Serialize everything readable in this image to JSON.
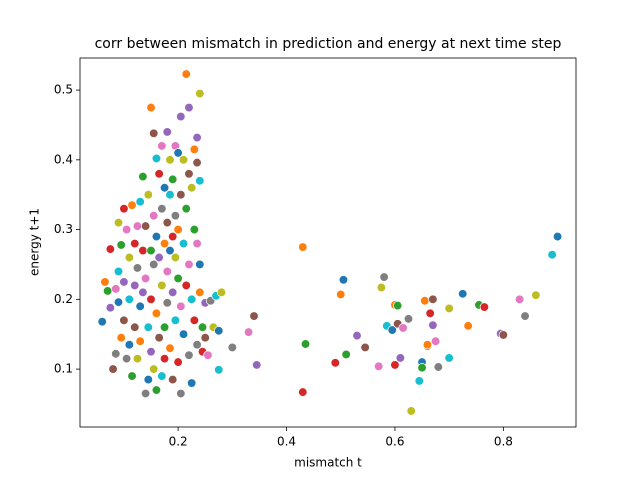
{
  "chart_data": {
    "type": "scatter",
    "title": "corr between mismatch in prediction and energy at next time step",
    "x_label": "mismatch t",
    "y_label": "energy t+1",
    "xlim": [
      0.019,
      0.934
    ],
    "ylim": [
      0.017,
      0.546
    ],
    "xticks": [
      0.2,
      0.4,
      0.6,
      0.8
    ],
    "yticks": [
      0.1,
      0.2,
      0.3,
      0.4,
      0.5
    ],
    "grid": false,
    "palette": [
      "#1f77b4",
      "#ff7f0e",
      "#2ca02c",
      "#d62728",
      "#9467bd",
      "#8c564b",
      "#e377c2",
      "#7f7f7f",
      "#bcbd22",
      "#17becf"
    ],
    "series": [
      {
        "x": [
          0.06,
          0.065,
          0.07,
          0.075,
          0.075,
          0.08,
          0.085,
          0.085,
          0.09,
          0.09,
          0.09,
          0.095,
          0.095,
          0.1,
          0.1,
          0.1,
          0.105,
          0.105,
          0.11,
          0.11,
          0.11,
          0.115,
          0.115,
          0.12,
          0.12,
          0.12,
          0.125,
          0.125,
          0.125,
          0.13,
          0.13,
          0.13,
          0.135,
          0.135,
          0.135,
          0.14,
          0.14,
          0.14,
          0.145,
          0.145,
          0.145,
          0.15,
          0.15,
          0.15,
          0.15,
          0.155,
          0.155,
          0.155,
          0.155,
          0.16,
          0.16,
          0.16,
          0.16,
          0.165,
          0.165,
          0.165,
          0.17,
          0.17,
          0.17,
          0.17,
          0.175,
          0.175,
          0.175,
          0.175,
          0.18,
          0.18,
          0.18,
          0.18,
          0.185,
          0.185,
          0.185,
          0.185,
          0.19,
          0.19,
          0.19,
          0.19,
          0.195,
          0.195,
          0.195,
          0.195,
          0.2,
          0.2,
          0.2,
          0.2,
          0.205,
          0.205,
          0.205,
          0.205,
          0.21,
          0.21,
          0.21,
          0.215,
          0.215,
          0.215,
          0.22,
          0.22,
          0.22,
          0.22,
          0.225,
          0.225,
          0.225,
          0.23,
          0.23,
          0.23,
          0.235,
          0.235,
          0.235,
          0.235,
          0.24,
          0.24,
          0.24,
          0.24,
          0.245,
          0.245,
          0.25,
          0.25,
          0.255,
          0.26,
          0.265,
          0.27,
          0.275,
          0.43,
          0.435,
          0.43,
          0.345,
          0.34,
          0.33,
          0.3,
          0.28,
          0.275,
          0.505,
          0.5,
          0.51,
          0.49,
          0.53,
          0.545,
          0.57,
          0.58,
          0.575,
          0.585,
          0.595,
          0.6,
          0.605,
          0.6,
          0.61,
          0.605,
          0.615,
          0.625,
          0.63,
          0.645,
          0.65,
          0.655,
          0.66,
          0.665,
          0.67,
          0.67,
          0.675,
          0.68,
          0.7,
          0.7,
          0.725,
          0.735,
          0.755,
          0.765,
          0.795,
          0.8,
          0.83,
          0.84,
          0.86,
          0.89,
          0.9,
          0.66,
          0.65
        ],
        "values": [
          0.168,
          0.225,
          0.212,
          0.272,
          0.188,
          0.1,
          0.215,
          0.122,
          0.31,
          0.24,
          0.196,
          0.145,
          0.278,
          0.33,
          0.225,
          0.17,
          0.3,
          0.115,
          0.26,
          0.2,
          0.135,
          0.335,
          0.09,
          0.28,
          0.22,
          0.16,
          0.305,
          0.245,
          0.115,
          0.34,
          0.19,
          0.14,
          0.376,
          0.27,
          0.21,
          0.305,
          0.23,
          0.065,
          0.35,
          0.16,
          0.085,
          0.475,
          0.27,
          0.2,
          0.125,
          0.438,
          0.32,
          0.25,
          0.1,
          0.402,
          0.29,
          0.18,
          0.07,
          0.38,
          0.26,
          0.145,
          0.42,
          0.33,
          0.22,
          0.09,
          0.36,
          0.28,
          0.16,
          0.115,
          0.44,
          0.31,
          0.24,
          0.195,
          0.4,
          0.35,
          0.27,
          0.13,
          0.372,
          0.29,
          0.21,
          0.085,
          0.42,
          0.32,
          0.26,
          0.17,
          0.41,
          0.3,
          0.23,
          0.11,
          0.462,
          0.35,
          0.19,
          0.065,
          0.4,
          0.28,
          0.15,
          0.523,
          0.33,
          0.22,
          0.475,
          0.38,
          0.25,
          0.12,
          0.36,
          0.2,
          0.08,
          0.415,
          0.3,
          0.17,
          0.432,
          0.396,
          0.28,
          0.135,
          0.495,
          0.37,
          0.25,
          0.21,
          0.16,
          0.125,
          0.195,
          0.145,
          0.12,
          0.198,
          0.16,
          0.205,
          0.155,
          0.275,
          0.136,
          0.067,
          0.106,
          0.176,
          0.153,
          0.131,
          0.21,
          0.099,
          0.228,
          0.207,
          0.121,
          0.109,
          0.148,
          0.131,
          0.104,
          0.232,
          0.217,
          0.162,
          0.156,
          0.192,
          0.191,
          0.106,
          0.116,
          0.165,
          0.159,
          0.172,
          0.04,
          0.083,
          0.11,
          0.198,
          0.133,
          0.18,
          0.163,
          0.2,
          0.14,
          0.103,
          0.187,
          0.116,
          0.208,
          0.162,
          0.192,
          0.189,
          0.151,
          0.149,
          0.2,
          0.176,
          0.206,
          0.264,
          0.29,
          0.135,
          0.102
        ]
      }
    ]
  }
}
